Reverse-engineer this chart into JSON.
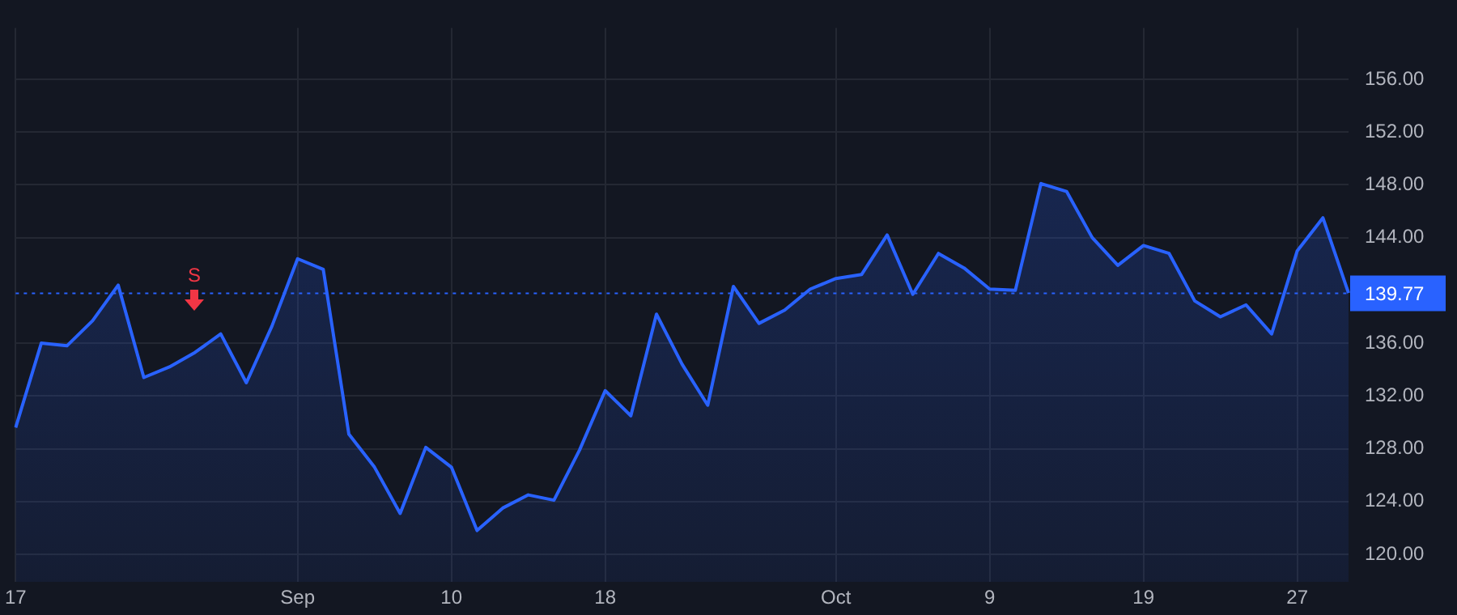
{
  "chart_data": {
    "type": "area",
    "categories": [
      "17",
      null,
      null,
      null,
      null,
      null,
      null,
      null,
      null,
      null,
      null,
      "Sep",
      null,
      null,
      null,
      null,
      null,
      "10",
      null,
      null,
      null,
      null,
      null,
      "18",
      null,
      null,
      null,
      null,
      null,
      null,
      null,
      null,
      "Oct",
      null,
      null,
      null,
      null,
      null,
      "9",
      null,
      null,
      null,
      null,
      null,
      "19",
      null,
      null,
      null,
      null,
      null,
      "27",
      null,
      null
    ],
    "series": [
      {
        "color": "#2962ff",
        "values": [
          129.6,
          136.0,
          135.8,
          137.7,
          140.4,
          133.4,
          134.2,
          135.3,
          136.7,
          133.0,
          137.3,
          142.4,
          141.6,
          129.1,
          126.6,
          123.1,
          128.1,
          126.6,
          121.8,
          123.5,
          124.5,
          124.1,
          127.9,
          132.4,
          130.5,
          138.2,
          134.4,
          131.3,
          140.3,
          137.5,
          138.5,
          140.1,
          140.9,
          141.2,
          144.2,
          139.7,
          142.8,
          141.7,
          140.1,
          140.0,
          148.1,
          147.5,
          144.0,
          141.9,
          143.4,
          142.8,
          139.2,
          138.0,
          138.9,
          136.7,
          143.0,
          145.5,
          139.8
        ]
      }
    ],
    "ylim": [
      117.9,
      159.9
    ],
    "yticks": [
      {
        "value": 120,
        "label": "120.00"
      },
      {
        "value": 124,
        "label": "124.00"
      },
      {
        "value": 128,
        "label": "128.00"
      },
      {
        "value": 132,
        "label": "132.00"
      },
      {
        "value": 136,
        "label": "136.00"
      },
      {
        "value": 144,
        "label": "144.00"
      },
      {
        "value": 148,
        "label": "148.00"
      },
      {
        "value": 152,
        "label": "152.00"
      },
      {
        "value": 156,
        "label": "156.00"
      }
    ],
    "grid": true,
    "marker": "none",
    "ref_lines": [
      {
        "axis": "y",
        "value": 139.77,
        "label": "139.77",
        "color": "#2962ff",
        "line_style": "dotted"
      }
    ],
    "annotations": [
      "S"
    ]
  }
}
